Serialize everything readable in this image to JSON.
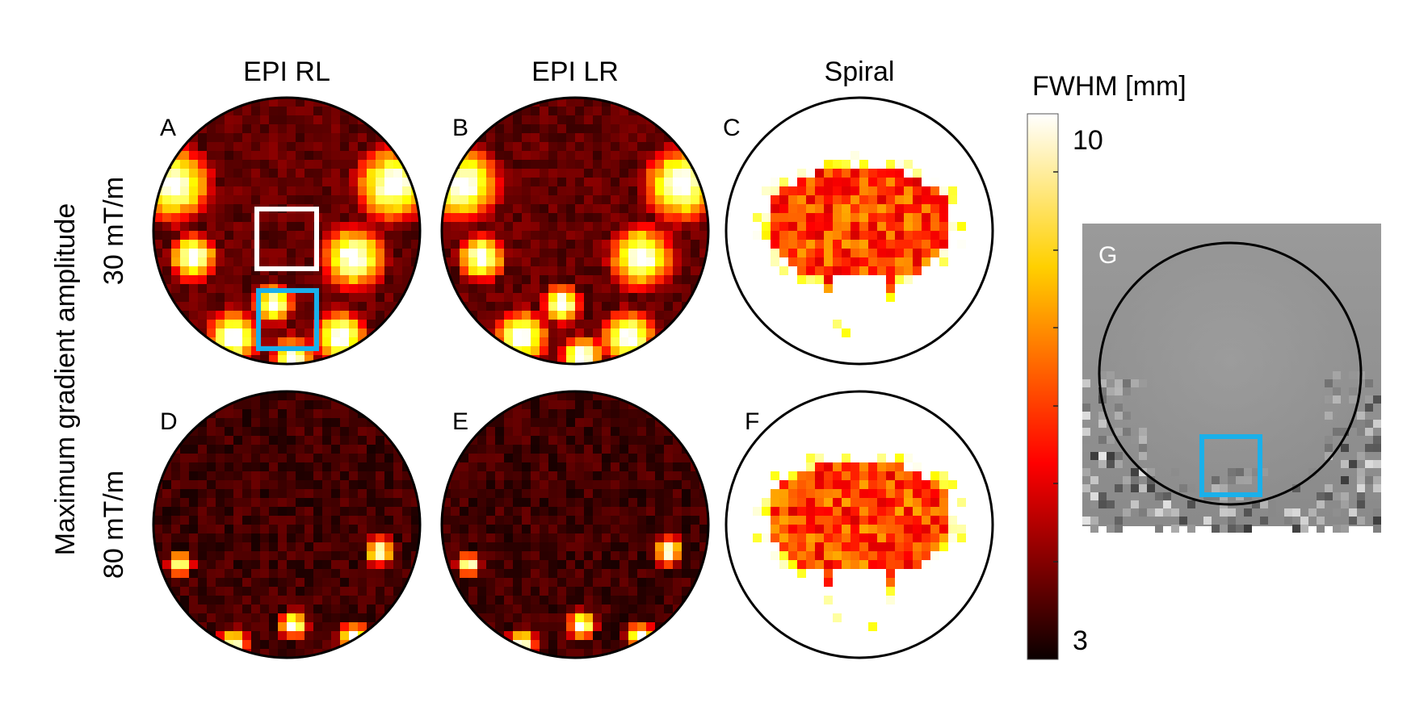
{
  "figure": {
    "column_titles": [
      "EPI RL",
      "EPI LR",
      "Spiral"
    ],
    "row_group_label": "Maximum gradient amplitude",
    "row_labels": [
      "30 mT/m",
      "80 mT/m"
    ],
    "panels": [
      {
        "letter": "A",
        "row": 0,
        "col": 0,
        "pattern": "epi"
      },
      {
        "letter": "B",
        "row": 0,
        "col": 1,
        "pattern": "epi"
      },
      {
        "letter": "C",
        "row": 0,
        "col": 2,
        "pattern": "spiral"
      },
      {
        "letter": "D",
        "row": 1,
        "col": 0,
        "pattern": "epi80"
      },
      {
        "letter": "E",
        "row": 1,
        "col": 1,
        "pattern": "epi80"
      },
      {
        "letter": "F",
        "row": 1,
        "col": 2,
        "pattern": "spiral"
      }
    ],
    "inset_letter": "G",
    "colorbar": {
      "title": "FWHM [mm]",
      "min_label": "3",
      "max_label": "10",
      "min": 3,
      "max": 10,
      "colormap": "hot"
    },
    "colors": {
      "roi_white": "#ffffff",
      "roi_blue": "#1ab0ea",
      "circle": "#000000"
    }
  }
}
